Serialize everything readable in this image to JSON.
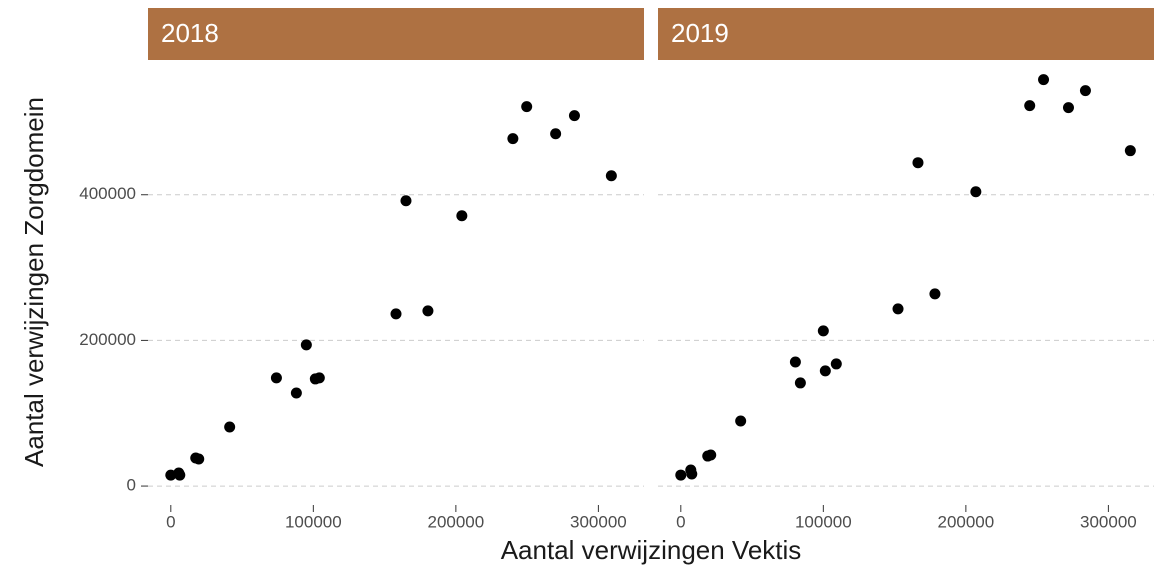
{
  "chart_data": {
    "type": "scatter",
    "xlabel": "Aantal verwijzingen Vektis",
    "ylabel": "Aantal verwijzingen Zorgdomein",
    "xlim": [
      -16000,
      332000
    ],
    "ylim": [
      -26000,
      585000
    ],
    "xticks": [
      0,
      100000,
      200000,
      300000
    ],
    "yticks": [
      0,
      200000,
      400000
    ],
    "grid": true,
    "color": "#000000",
    "strip_color": "#ae7142",
    "facets": [
      {
        "title": "2018",
        "x": [
          0,
          5600,
          6300,
          17500,
          19600,
          41300,
          74100,
          88100,
          95100,
          101400,
          104200,
          158000,
          165000,
          180400,
          204200,
          240000,
          249700,
          270000,
          283200,
          309100
        ],
        "y": [
          15000,
          17900,
          15100,
          38500,
          37100,
          81100,
          148500,
          127800,
          193800,
          147100,
          148500,
          236400,
          391800,
          240500,
          371100,
          477000,
          521000,
          483800,
          508600,
          426100
        ]
      },
      {
        "title": "2019",
        "x": [
          0,
          7000,
          7700,
          18900,
          21000,
          42000,
          80400,
          83900,
          100000,
          101400,
          109100,
          152400,
          166400,
          178300,
          207000,
          244800,
          254500,
          272000,
          283900,
          315400
        ],
        "y": [
          15100,
          22000,
          16500,
          41200,
          42600,
          89300,
          170400,
          141600,
          213100,
          158100,
          167700,
          243300,
          444000,
          263900,
          404100,
          522300,
          558100,
          519600,
          543000,
          460500
        ]
      }
    ]
  }
}
